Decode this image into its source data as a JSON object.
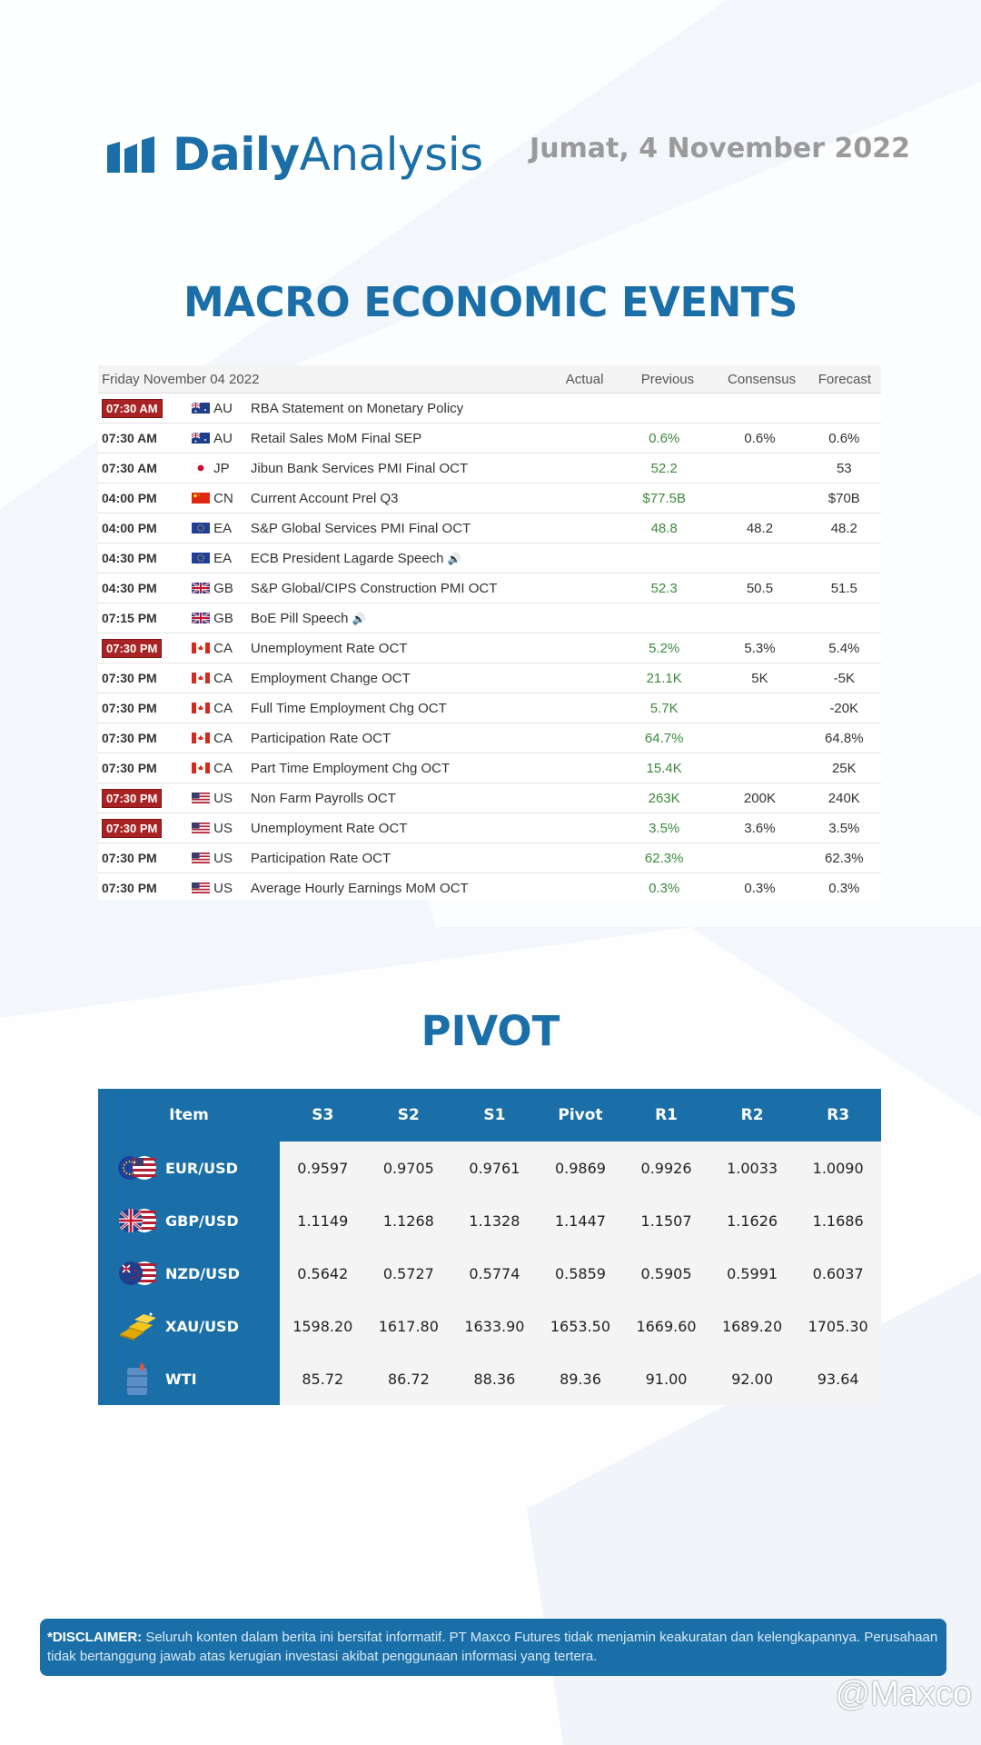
{
  "header": {
    "logo_bold": "Daily",
    "logo_light": "Analysis",
    "date": "Jumat, 4 November 2022"
  },
  "macro": {
    "title": "MACRO ECONOMIC EVENTS",
    "table_header": {
      "date": "Friday November 04 2022",
      "actual": "Actual",
      "previous": "Previous",
      "consensus": "Consensus",
      "forecast": "Forecast"
    },
    "events": [
      {
        "time": "07:30 AM",
        "highlight": true,
        "flag": "au-flag-icon",
        "country": "AU",
        "event": "RBA Statement on Monetary Policy",
        "speech": false,
        "actual": "",
        "previous": "",
        "consensus": "",
        "forecast": ""
      },
      {
        "time": "07:30 AM",
        "highlight": false,
        "flag": "au-flag-icon",
        "country": "AU",
        "event": "Retail Sales MoM Final SEP",
        "speech": false,
        "actual": "",
        "previous": "0.6%",
        "consensus": "0.6%",
        "forecast": "0.6%"
      },
      {
        "time": "07:30 AM",
        "highlight": false,
        "flag": "jp-flag-icon",
        "country": "JP",
        "event": "Jibun Bank Services PMI Final OCT",
        "speech": false,
        "actual": "",
        "previous": "52.2",
        "consensus": "",
        "forecast": "53"
      },
      {
        "time": "04:00 PM",
        "highlight": false,
        "flag": "cn-flag-icon",
        "country": "CN",
        "event": "Current Account Prel Q3",
        "speech": false,
        "actual": "",
        "previous": "$77.5B",
        "consensus": "",
        "forecast": "$70B"
      },
      {
        "time": "04:00 PM",
        "highlight": false,
        "flag": "eu-flag-icon",
        "country": "EA",
        "event": "S&P Global Services PMI Final OCT",
        "speech": false,
        "actual": "",
        "previous": "48.8",
        "consensus": "48.2",
        "forecast": "48.2"
      },
      {
        "time": "04:30 PM",
        "highlight": false,
        "flag": "eu-flag-icon",
        "country": "EA",
        "event": "ECB President Lagarde Speech",
        "speech": true,
        "actual": "",
        "previous": "",
        "consensus": "",
        "forecast": ""
      },
      {
        "time": "04:30 PM",
        "highlight": false,
        "flag": "gb-flag-icon",
        "country": "GB",
        "event": "S&P Global/CIPS Construction PMI OCT",
        "speech": false,
        "actual": "",
        "previous": "52.3",
        "consensus": "50.5",
        "forecast": "51.5"
      },
      {
        "time": "07:15 PM",
        "highlight": false,
        "flag": "gb-flag-icon",
        "country": "GB",
        "event": "BoE Pill Speech",
        "speech": true,
        "actual": "",
        "previous": "",
        "consensus": "",
        "forecast": ""
      },
      {
        "time": "07:30 PM",
        "highlight": true,
        "flag": "ca-flag-icon",
        "country": "CA",
        "event": "Unemployment Rate OCT",
        "speech": false,
        "actual": "",
        "previous": "5.2%",
        "consensus": "5.3%",
        "forecast": "5.4%"
      },
      {
        "time": "07:30 PM",
        "highlight": false,
        "flag": "ca-flag-icon",
        "country": "CA",
        "event": "Employment Change OCT",
        "speech": false,
        "actual": "",
        "previous": "21.1K",
        "consensus": "5K",
        "forecast": "-5K"
      },
      {
        "time": "07:30 PM",
        "highlight": false,
        "flag": "ca-flag-icon",
        "country": "CA",
        "event": "Full Time Employment Chg OCT",
        "speech": false,
        "actual": "",
        "previous": "5.7K",
        "consensus": "",
        "forecast": "-20K"
      },
      {
        "time": "07:30 PM",
        "highlight": false,
        "flag": "ca-flag-icon",
        "country": "CA",
        "event": "Participation Rate OCT",
        "speech": false,
        "actual": "",
        "previous": "64.7%",
        "consensus": "",
        "forecast": "64.8%"
      },
      {
        "time": "07:30 PM",
        "highlight": false,
        "flag": "ca-flag-icon",
        "country": "CA",
        "event": "Part Time Employment Chg OCT",
        "speech": false,
        "actual": "",
        "previous": "15.4K",
        "consensus": "",
        "forecast": "25K"
      },
      {
        "time": "07:30 PM",
        "highlight": true,
        "flag": "us-flag-icon",
        "country": "US",
        "event": "Non Farm Payrolls OCT",
        "speech": false,
        "actual": "",
        "previous": "263K",
        "consensus": "200K",
        "forecast": "240K"
      },
      {
        "time": "07:30 PM",
        "highlight": true,
        "flag": "us-flag-icon",
        "country": "US",
        "event": "Unemployment Rate OCT",
        "speech": false,
        "actual": "",
        "previous": "3.5%",
        "consensus": "3.6%",
        "forecast": "3.5%"
      },
      {
        "time": "07:30 PM",
        "highlight": false,
        "flag": "us-flag-icon",
        "country": "US",
        "event": "Participation Rate OCT",
        "speech": false,
        "actual": "",
        "previous": "62.3%",
        "consensus": "",
        "forecast": "62.3%"
      },
      {
        "time": "07:30 PM",
        "highlight": false,
        "flag": "us-flag-icon",
        "country": "US",
        "event": "Average Hourly Earnings MoM OCT",
        "speech": false,
        "actual": "",
        "previous": "0.3%",
        "consensus": "0.3%",
        "forecast": "0.3%"
      }
    ]
  },
  "pivot": {
    "title": "PIVOT",
    "headers": [
      "Item",
      "S3",
      "S2",
      "S1",
      "Pivot",
      "R1",
      "R2",
      "R3"
    ],
    "rows": [
      {
        "item": "EUR/USD",
        "icon": "eur-usd-flags-icon",
        "values": [
          "0.9597",
          "0.9705",
          "0.9761",
          "0.9869",
          "0.9926",
          "1.0033",
          "1.0090"
        ]
      },
      {
        "item": "GBP/USD",
        "icon": "gbp-usd-flags-icon",
        "values": [
          "1.1149",
          "1.1268",
          "1.1328",
          "1.1447",
          "1.1507",
          "1.1626",
          "1.1686"
        ]
      },
      {
        "item": "NZD/USD",
        "icon": "nzd-usd-flags-icon",
        "values": [
          "0.5642",
          "0.5727",
          "0.5774",
          "0.5859",
          "0.5905",
          "0.5991",
          "0.6037"
        ]
      },
      {
        "item": "XAU/USD",
        "icon": "gold-bars-icon",
        "values": [
          "1598.20",
          "1617.80",
          "1633.90",
          "1653.50",
          "1669.60",
          "1689.20",
          "1705.30"
        ]
      },
      {
        "item": "WTI",
        "icon": "oil-barrel-icon",
        "values": [
          "85.72",
          "86.72",
          "88.36",
          "89.36",
          "91.00",
          "92.00",
          "93.64"
        ]
      }
    ]
  },
  "disclaimer": {
    "label": "*DISCLAIMER:",
    "text": " Seluruh konten dalam berita ini bersifat informatif. PT Maxco Futures tidak menjamin keakuratan dan kelengkapannya. Perusahaan tidak bertanggung jawab atas kerugian investasi akibat penggunaan informasi yang tertera."
  },
  "watermark": "@Maxco",
  "colors": {
    "brand_blue": "#1a6fa8",
    "highlight_red": "#a82323",
    "previous_green": "#3d8a3d",
    "date_gray": "#9a9a9a"
  }
}
